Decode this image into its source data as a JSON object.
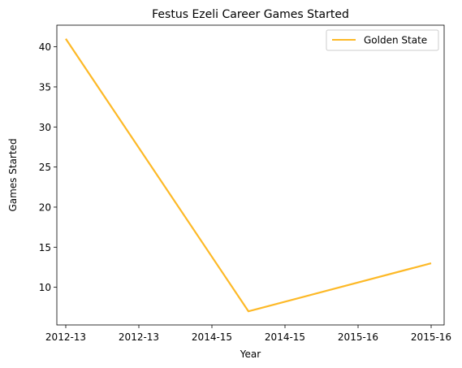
{
  "chart_data": {
    "type": "line",
    "title": "Festus Ezeli Career Games Started",
    "xlabel": "Year",
    "ylabel": "Games Started",
    "x_tick_labels": [
      "2012-13",
      "2012-13",
      "2014-15",
      "2014-15",
      "2015-16",
      "2015-16"
    ],
    "y_ticks": [
      10,
      15,
      20,
      25,
      30,
      35,
      40
    ],
    "ylim": [
      5.3,
      42.7
    ],
    "grid": false,
    "legend": "top-right",
    "series": [
      {
        "name": "Golden State",
        "color": "#FDB927",
        "x": [
          "2012-13",
          "2014-15",
          "2015-16"
        ],
        "values": [
          41,
          7,
          13
        ]
      }
    ]
  }
}
